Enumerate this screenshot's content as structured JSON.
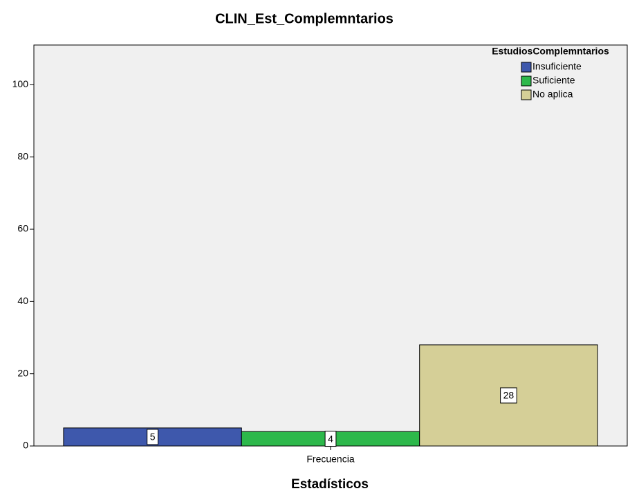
{
  "chart_data": {
    "type": "bar",
    "title": "CLIN_Est_Complemntarios",
    "x_label": "Estadísticos",
    "legend_title": "EstudiosComplemntarios",
    "legend_position": "top-right",
    "categories": [
      "Frecuencia"
    ],
    "series": [
      {
        "name": "Insuficiente",
        "color": "#3e58ac",
        "values": [
          5
        ]
      },
      {
        "name": "Suficiente",
        "color": "#2db84b",
        "values": [
          4
        ]
      },
      {
        "name": "No aplica",
        "color": "#d5cf97",
        "values": [
          28
        ]
      }
    ],
    "ylim": [
      0,
      111
    ],
    "yticks": [
      0,
      20,
      40,
      60,
      80,
      100
    ],
    "grid": false,
    "data_labels": true
  }
}
